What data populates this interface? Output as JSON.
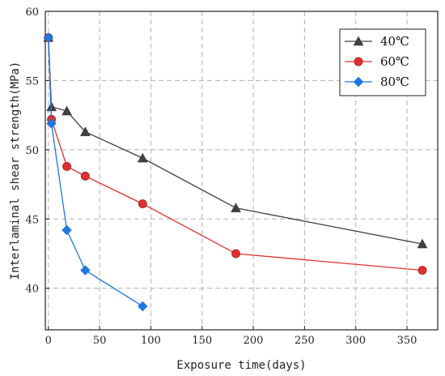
{
  "chart_data": {
    "type": "line",
    "xlabel": "Exposure time(days)",
    "ylabel": "Interlaminal shear strength(MPa)",
    "xlim": [
      -3,
      380
    ],
    "ylim": [
      37,
      60
    ],
    "xticks": [
      0,
      50,
      100,
      150,
      200,
      250,
      300,
      350
    ],
    "yticks": [
      40,
      45,
      50,
      55,
      60
    ],
    "grid": true,
    "legend_position": "top-right",
    "series": [
      {
        "name": "40℃",
        "color": "#404040",
        "marker": "triangle",
        "x": [
          0,
          3,
          18,
          36,
          92,
          183,
          365
        ],
        "y": [
          58.1,
          53.1,
          52.8,
          51.3,
          49.4,
          45.8,
          43.2
        ]
      },
      {
        "name": "60℃",
        "color": "#e03030",
        "marker": "circle",
        "x": [
          0,
          3,
          18,
          36,
          92,
          183,
          365
        ],
        "y": [
          58.1,
          52.2,
          48.8,
          48.1,
          46.1,
          42.5,
          41.3
        ]
      },
      {
        "name": "80℃",
        "color": "#1f77e0",
        "marker": "diamond",
        "x": [
          0,
          3,
          18,
          36,
          92
        ],
        "y": [
          58.1,
          51.9,
          44.2,
          41.3,
          38.7
        ]
      }
    ]
  }
}
